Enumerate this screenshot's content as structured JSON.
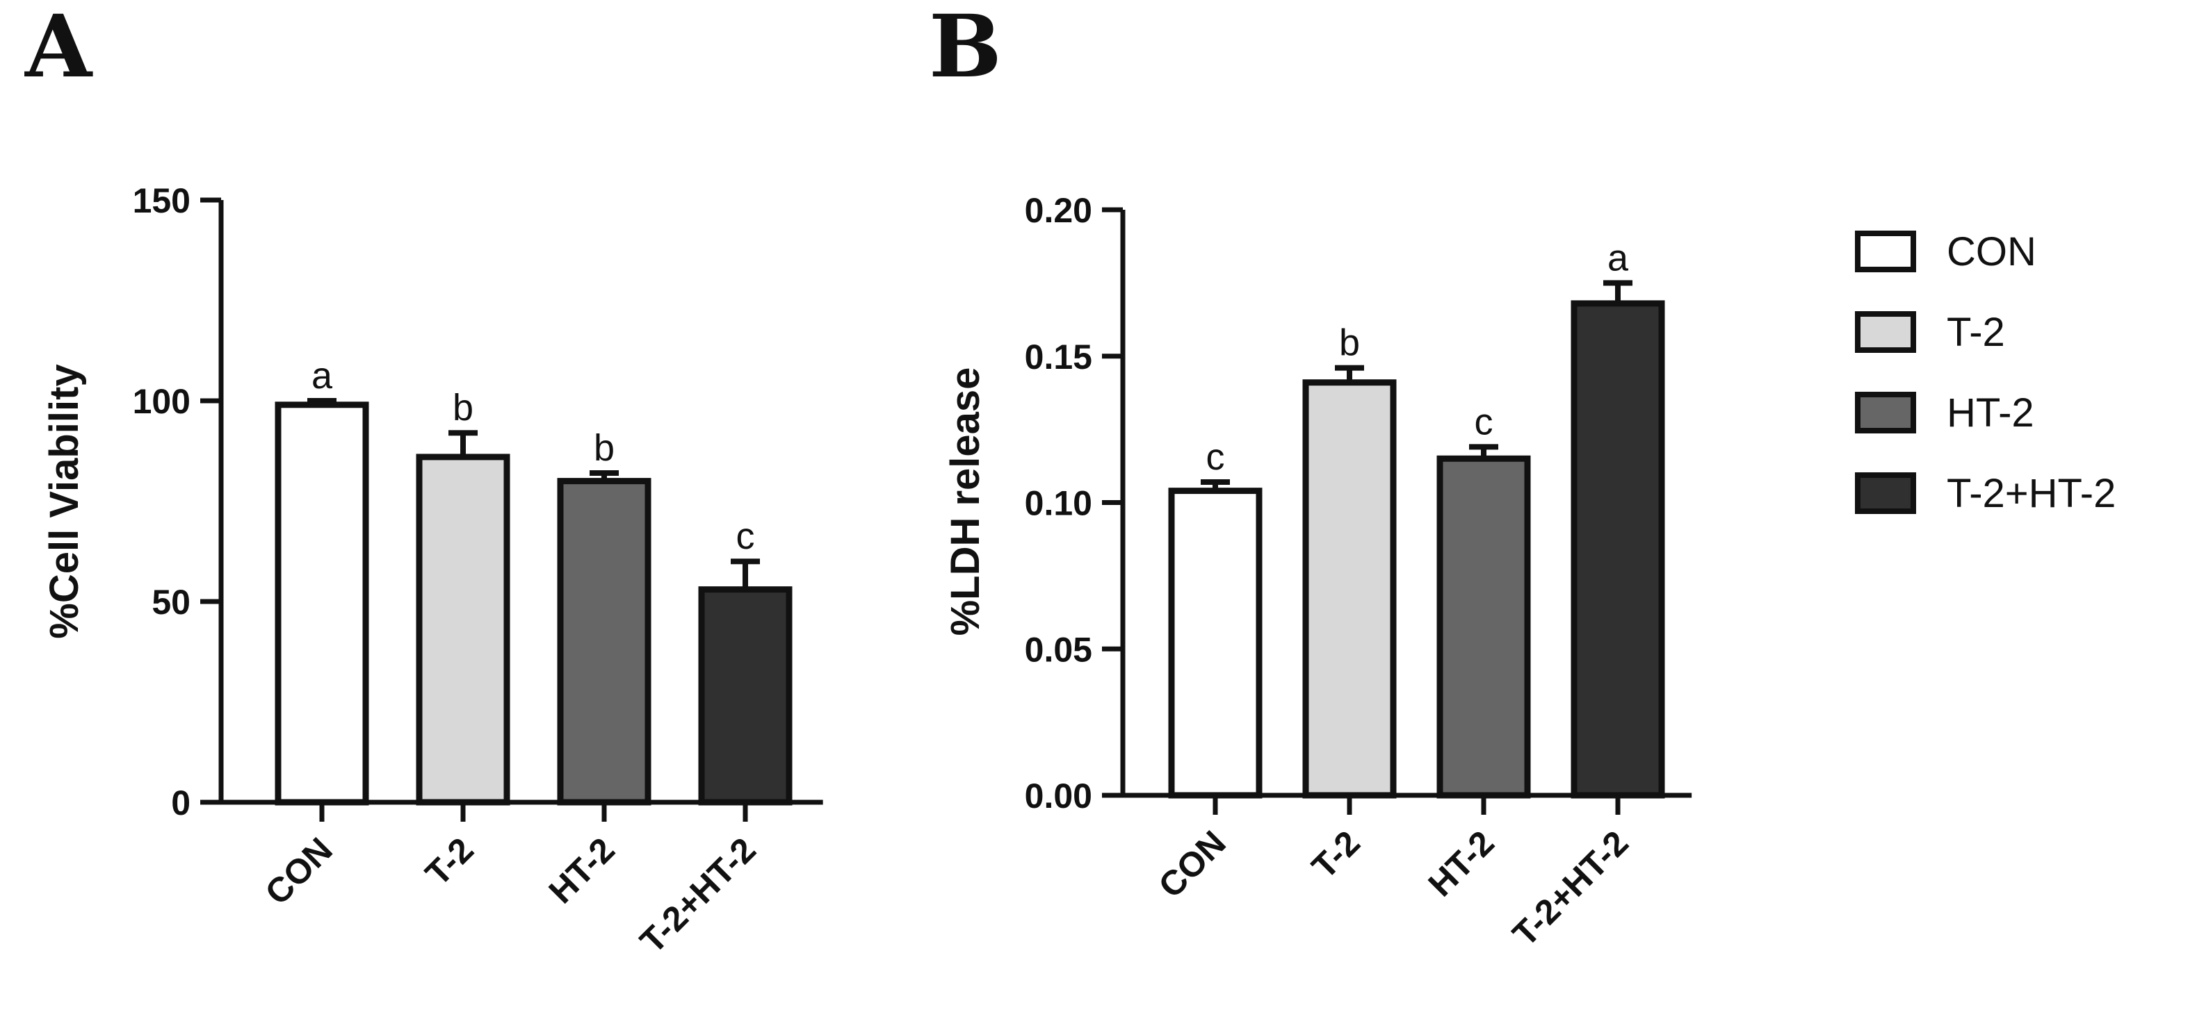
{
  "legend": {
    "items": [
      {
        "label": "CON",
        "color": "#ffffff"
      },
      {
        "label": "T-2",
        "color": "#d8d8d8"
      },
      {
        "label": "HT-2",
        "color": "#666666"
      },
      {
        "label": "T-2+HT-2",
        "color": "#303030"
      }
    ]
  },
  "chart_data": [
    {
      "type": "bar",
      "panel": "A",
      "title": "",
      "ylabel": "%Cell Viability",
      "xlabel": "",
      "categories": [
        "CON",
        "T-2",
        "HT-2",
        "T-2+HT-2"
      ],
      "values": [
        99,
        86,
        80,
        53
      ],
      "errors": [
        1,
        6,
        2,
        7
      ],
      "significance": [
        "a",
        "b",
        "b",
        "c"
      ],
      "colors": [
        "#ffffff",
        "#d8d8d8",
        "#666666",
        "#303030"
      ],
      "ylim": [
        0,
        150
      ],
      "yticks": [
        0,
        50,
        100,
        150
      ],
      "ytick_labels": [
        "0",
        "50",
        "100",
        "150"
      ],
      "grid": false
    },
    {
      "type": "bar",
      "panel": "B",
      "title": "",
      "ylabel": "%LDH release",
      "xlabel": "",
      "categories": [
        "CON",
        "T-2",
        "HT-2",
        "T-2+HT-2"
      ],
      "values": [
        0.104,
        0.141,
        0.115,
        0.168
      ],
      "errors": [
        0.003,
        0.005,
        0.004,
        0.007
      ],
      "significance": [
        "c",
        "b",
        "c",
        "a"
      ],
      "colors": [
        "#ffffff",
        "#d8d8d8",
        "#666666",
        "#303030"
      ],
      "ylim": [
        0,
        0.2
      ],
      "yticks": [
        0,
        0.05,
        0.1,
        0.15,
        0.2
      ],
      "ytick_labels": [
        "0.00",
        "0.05",
        "0.10",
        "0.15",
        "0.20"
      ],
      "grid": false
    }
  ]
}
